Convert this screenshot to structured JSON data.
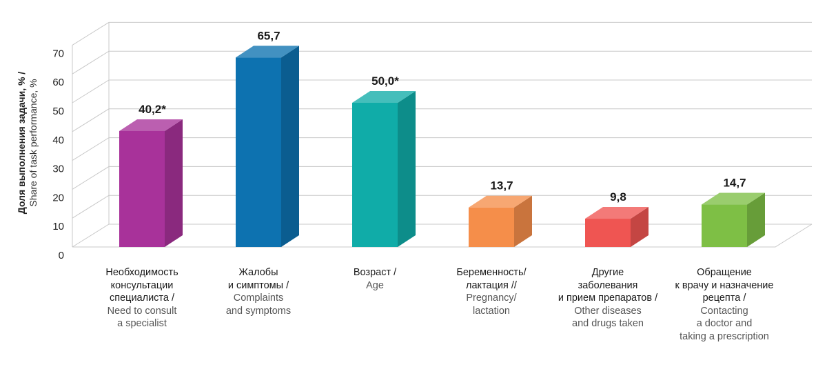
{
  "chart_data": {
    "type": "bar",
    "style": "3d",
    "ylabel_ru": "Доля выполнения задачи, % /",
    "ylabel_en": "Share of task performance, %",
    "ylim": [
      0,
      70
    ],
    "yticks": [
      "0",
      "10",
      "20",
      "30",
      "40",
      "50",
      "60",
      "70"
    ],
    "grid": true,
    "categories": [
      {
        "ru": [
          "Необходимость",
          "консультации",
          "специалиста /"
        ],
        "en": [
          "Need to consult",
          "a specialist"
        ]
      },
      {
        "ru": [
          "Жалобы",
          "и симптомы /"
        ],
        "en": [
          "Complaints",
          "and symptoms"
        ]
      },
      {
        "ru": [
          "Возраст /"
        ],
        "en": [
          "Age"
        ]
      },
      {
        "ru": [
          "Беременность/",
          "лактация //"
        ],
        "en": [
          "Pregnancy/",
          "lactation"
        ]
      },
      {
        "ru": [
          "Другие",
          "заболевания",
          "и прием препаратов /"
        ],
        "en": [
          "Other diseases",
          "and drugs taken"
        ]
      },
      {
        "ru": [
          "Обращение",
          "к врачу и назначение",
          "рецепта /"
        ],
        "en": [
          "Contacting",
          "a doctor and",
          "taking a prescription"
        ]
      }
    ],
    "values": [
      40.2,
      65.7,
      50.0,
      13.7,
      9.8,
      14.7
    ],
    "labels": [
      "40,2*",
      "65,7",
      "50,0*",
      "13,7",
      "9,8",
      "14,7"
    ],
    "colors": [
      "#a8329a",
      "#0d72b0",
      "#10aca8",
      "#f58e4a",
      "#ef5552",
      "#7ebf45"
    ]
  }
}
